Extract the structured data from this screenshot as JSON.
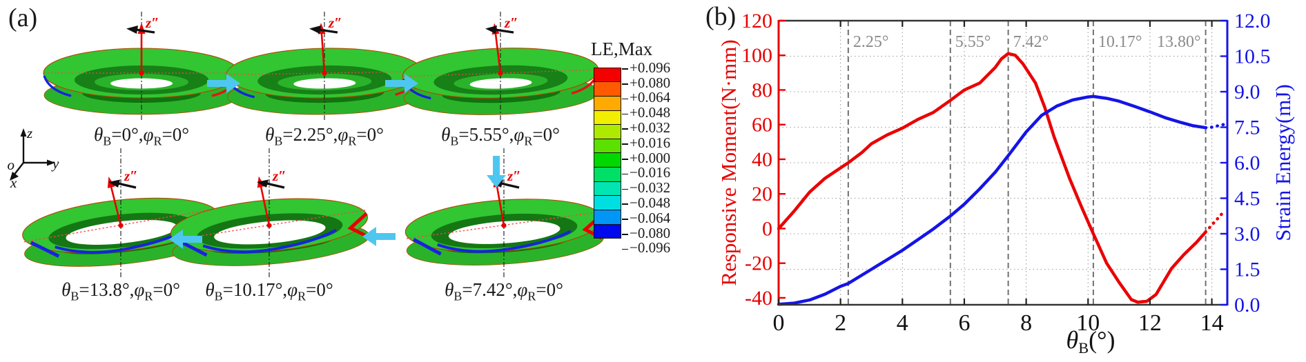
{
  "panel_a": {
    "label": "(a)",
    "z_axis_label": "z″",
    "triad": {
      "z": "z",
      "o": "o",
      "y": "y",
      "x": "x"
    },
    "legend": {
      "title": "LE,Max",
      "colors": [
        "#f40000",
        "#ff5a00",
        "#ffaa00",
        "#f2ee00",
        "#aeea00",
        "#5ce000",
        "#00d800",
        "#00df66",
        "#00e5b2",
        "#00dfe0",
        "#0096f5",
        "#0008ee"
      ],
      "ticks": [
        "+0.096",
        "+0.080",
        "+0.064",
        "+0.048",
        "+0.032",
        "+0.016",
        "+0.000",
        "−0.016",
        "−0.032",
        "−0.048",
        "−0.064",
        "−0.080",
        "−0.096"
      ]
    },
    "tori": [
      {
        "caption": "θ{B}=0°,φ{R}=0°",
        "row": 0,
        "tilt": 0,
        "ztilt": 0
      },
      {
        "caption": "θ{B}=2.25°,φ{R}=0°",
        "row": 0,
        "tilt": -1,
        "ztilt": -4
      },
      {
        "caption": "θ{B}=5.55°,φ{R}=0°",
        "row": 0,
        "tilt": -2,
        "ztilt": -7
      },
      {
        "caption": "θ{B}=13.8°,φ{R}=0°",
        "row": 1,
        "tilt": -6,
        "ztilt": -14
      },
      {
        "caption": "θ{B}=10.17°,φ{R}=0°",
        "row": 1,
        "tilt": -5,
        "ztilt": -12
      },
      {
        "caption": "θ{B}=7.42°,φ{R}=0°",
        "row": 1,
        "tilt": -4,
        "ztilt": -10
      }
    ],
    "flow_arrows": [
      {
        "dir": "right"
      },
      {
        "dir": "right"
      },
      {
        "dir": "down"
      },
      {
        "dir": "left"
      },
      {
        "dir": "left"
      }
    ],
    "arrow_color": "#4ec7f0"
  },
  "panel_b": {
    "label": "(b)"
  },
  "chart_data": {
    "type": "line",
    "title": "",
    "xlabel": "θ{B}(°)",
    "ylabel_left": "Responsive Moment(N·mm)",
    "ylabel_right": "Strain Energy(mJ)",
    "xlim": [
      0,
      14.5
    ],
    "ylim_left": [
      -44,
      120
    ],
    "ylim_right": [
      0,
      12
    ],
    "xticks": [
      0,
      2,
      4,
      6,
      8,
      10,
      12,
      14
    ],
    "yticks_left": [
      "-40",
      "-20",
      "0",
      "20",
      "40",
      "60",
      "80",
      "100",
      "120"
    ],
    "yticks_left_values": [
      -40,
      -20,
      0,
      20,
      40,
      60,
      80,
      100,
      120
    ],
    "yticks_right": [
      "0.0",
      "1.5",
      "3.0",
      "4.5",
      "6.0",
      "7.5",
      "9.0",
      "10.5",
      "12.0"
    ],
    "yticks_right_values": [
      0,
      1.5,
      3,
      4.5,
      6,
      7.5,
      9,
      10.5,
      12
    ],
    "grid": true,
    "axis_colors": {
      "left": "#e80000",
      "right": "#1414e6",
      "frame": "#333333"
    },
    "annotations": [
      {
        "x": 2.25,
        "label": "2.25°",
        "side": "right"
      },
      {
        "x": 5.55,
        "label": "5.55°",
        "side": "right"
      },
      {
        "x": 7.42,
        "label": "7.42°",
        "side": "right"
      },
      {
        "x": 10.17,
        "label": "10.17°",
        "side": "right"
      },
      {
        "x": 13.8,
        "label": "13.80°",
        "side": "left"
      }
    ],
    "series": [
      {
        "name": "Responsive Moment",
        "axis": "left",
        "color": "#ea0000",
        "points": [
          [
            0,
            0
          ],
          [
            0.5,
            10
          ],
          [
            1,
            21
          ],
          [
            1.5,
            29
          ],
          [
            2,
            35
          ],
          [
            2.25,
            38
          ],
          [
            2.7,
            44
          ],
          [
            3,
            49
          ],
          [
            3.5,
            54
          ],
          [
            4,
            58
          ],
          [
            4.5,
            63
          ],
          [
            5,
            67
          ],
          [
            5.55,
            74
          ],
          [
            6,
            80
          ],
          [
            6.5,
            84
          ],
          [
            7,
            93
          ],
          [
            7.2,
            98
          ],
          [
            7.42,
            101
          ],
          [
            7.65,
            100
          ],
          [
            7.9,
            95
          ],
          [
            8.3,
            84
          ],
          [
            8.6,
            70
          ],
          [
            8.9,
            53
          ],
          [
            9.4,
            29
          ],
          [
            9.8,
            12
          ],
          [
            10.17,
            -3
          ],
          [
            10.6,
            -20
          ],
          [
            11,
            -31
          ],
          [
            11.4,
            -41
          ],
          [
            11.6,
            -42.5
          ],
          [
            11.9,
            -42
          ],
          [
            12.2,
            -38
          ],
          [
            12.7,
            -23
          ],
          [
            13.1,
            -15
          ],
          [
            13.5,
            -8
          ],
          [
            13.8,
            -2
          ]
        ],
        "dotted_tail": [
          [
            13.8,
            -2
          ],
          [
            14.05,
            3
          ],
          [
            14.25,
            7
          ],
          [
            14.4,
            10
          ]
        ]
      },
      {
        "name": "Strain Energy",
        "axis": "right",
        "color": "#1414e6",
        "points": [
          [
            0,
            0.02
          ],
          [
            0.5,
            0.07
          ],
          [
            1,
            0.2
          ],
          [
            1.5,
            0.45
          ],
          [
            2,
            0.78
          ],
          [
            2.25,
            0.9
          ],
          [
            3,
            1.5
          ],
          [
            3.5,
            1.9
          ],
          [
            4,
            2.3
          ],
          [
            4.5,
            2.75
          ],
          [
            5,
            3.2
          ],
          [
            5.55,
            3.75
          ],
          [
            6,
            4.25
          ],
          [
            6.5,
            4.9
          ],
          [
            7,
            5.6
          ],
          [
            7.42,
            6.3
          ],
          [
            8,
            7.3
          ],
          [
            8.5,
            8.0
          ],
          [
            9,
            8.4
          ],
          [
            9.5,
            8.65
          ],
          [
            10,
            8.78
          ],
          [
            10.17,
            8.8
          ],
          [
            10.6,
            8.72
          ],
          [
            11,
            8.6
          ],
          [
            11.5,
            8.38
          ],
          [
            12,
            8.15
          ],
          [
            12.5,
            7.9
          ],
          [
            13,
            7.7
          ],
          [
            13.4,
            7.56
          ],
          [
            13.8,
            7.48
          ]
        ],
        "dotted_tail": [
          [
            13.8,
            7.48
          ],
          [
            14.0,
            7.5
          ],
          [
            14.2,
            7.56
          ],
          [
            14.4,
            7.62
          ]
        ]
      }
    ]
  }
}
